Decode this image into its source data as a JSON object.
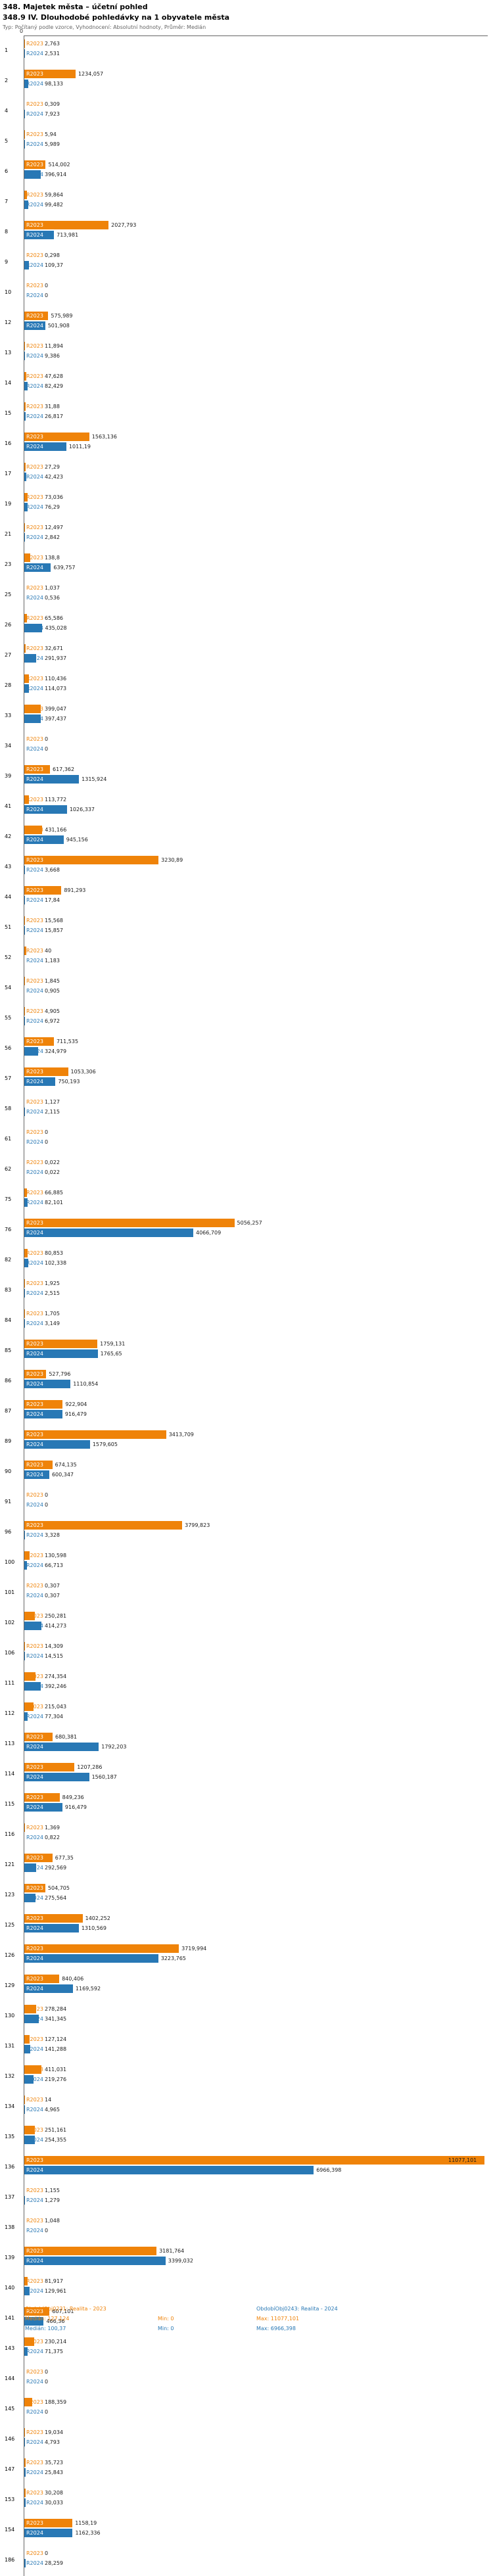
{
  "header": {
    "title": "348. Majetek města – účetní pohled",
    "subtitle": "348.9 IV. Dlouhodobé pohledávky na 1 obyvatele města",
    "meta": "Typ: Počítaný podle vzorce, Vyhodnocení: Absolutní hodnoty, Průměr: Medián"
  },
  "chart_data": {
    "type": "bar",
    "orientation": "horizontal",
    "x_axis": {
      "origin_label": "0",
      "max": 11077.101,
      "grid": false
    },
    "legend_position": "bottom",
    "series": [
      {
        "name": "R2023",
        "legend": "ObdobíObj0231: Realita - 2023",
        "color": "#ef8309",
        "median": "127,124",
        "min": "0",
        "max": "11077,101"
      },
      {
        "name": "R2024",
        "legend": "ObdobíObj0243: Realita - 2024",
        "color": "#2878b5",
        "median": "100,37",
        "min": "0",
        "max": "6966,398"
      }
    ],
    "rows": [
      {
        "num": "1",
        "r2023": "2,763",
        "r2024": "2,531"
      },
      {
        "num": "2",
        "r2023": "1234,057",
        "r2024": "98,133"
      },
      {
        "num": "4",
        "r2023": "0,309",
        "r2024": "7,923"
      },
      {
        "num": "5",
        "r2023": "5,94",
        "r2024": "5,989"
      },
      {
        "num": "6",
        "r2023": "514,002",
        "r2024": "396,914"
      },
      {
        "num": "7",
        "r2023": "59,864",
        "r2024": "99,482"
      },
      {
        "num": "8",
        "r2023": "2027,793",
        "r2024": "713,981"
      },
      {
        "num": "9",
        "r2023": "0,298",
        "r2024": "109,37"
      },
      {
        "num": "10",
        "r2023": "0",
        "r2024": "0"
      },
      {
        "num": "12",
        "r2023": "575,989",
        "r2024": "501,908"
      },
      {
        "num": "13",
        "r2023": "11,894",
        "r2024": "9,386"
      },
      {
        "num": "14",
        "r2023": "47,628",
        "r2024": "82,429"
      },
      {
        "num": "15",
        "r2023": "31,88",
        "r2024": "26,817"
      },
      {
        "num": "16",
        "r2023": "1563,136",
        "r2024": "1011,19"
      },
      {
        "num": "17",
        "r2023": "27,29",
        "r2024": "42,423"
      },
      {
        "num": "19",
        "r2023": "73,036",
        "r2024": "76,29"
      },
      {
        "num": "21",
        "r2023": "12,497",
        "r2024": "2,842"
      },
      {
        "num": "23",
        "r2023": "138,8",
        "r2024": "639,757"
      },
      {
        "num": "25",
        "r2023": "1,037",
        "r2024": "0,536"
      },
      {
        "num": "26",
        "r2023": "65,586",
        "r2024": "435,028"
      },
      {
        "num": "27",
        "r2023": "32,671",
        "r2024": "291,937"
      },
      {
        "num": "28",
        "r2023": "110,436",
        "r2024": "114,073"
      },
      {
        "num": "33",
        "r2023": "399,047",
        "r2024": "397,437"
      },
      {
        "num": "34",
        "r2023": "0",
        "r2024": "0"
      },
      {
        "num": "39",
        "r2023": "617,362",
        "r2024": "1315,924"
      },
      {
        "num": "41",
        "r2023": "113,772",
        "r2024": "1026,337"
      },
      {
        "num": "42",
        "r2023": "431,166",
        "r2024": "945,156"
      },
      {
        "num": "43",
        "r2023": "3230,89",
        "r2024": "3,668"
      },
      {
        "num": "44",
        "r2023": "891,293",
        "r2024": "17,84"
      },
      {
        "num": "51",
        "r2023": "15,568",
        "r2024": "15,857"
      },
      {
        "num": "52",
        "r2023": "40",
        "r2024": "1,183"
      },
      {
        "num": "54",
        "r2023": "1,845",
        "r2024": "0,905"
      },
      {
        "num": "55",
        "r2023": "4,905",
        "r2024": "6,972"
      },
      {
        "num": "56",
        "r2023": "711,535",
        "r2024": "324,979"
      },
      {
        "num": "57",
        "r2023": "1053,306",
        "r2024": "750,193"
      },
      {
        "num": "58",
        "r2023": "1,127",
        "r2024": "2,115"
      },
      {
        "num": "61",
        "r2023": "0",
        "r2024": "0"
      },
      {
        "num": "62",
        "r2023": "0,022",
        "r2024": "0,022"
      },
      {
        "num": "75",
        "r2023": "66,885",
        "r2024": "82,101"
      },
      {
        "num": "76",
        "r2023": "5056,257",
        "r2024": "4066,709"
      },
      {
        "num": "82",
        "r2023": "80,853",
        "r2024": "102,338"
      },
      {
        "num": "83",
        "r2023": "1,925",
        "r2024": "2,515"
      },
      {
        "num": "84",
        "r2023": "1,705",
        "r2024": "3,149"
      },
      {
        "num": "85",
        "r2023": "1759,131",
        "r2024": "1765,65"
      },
      {
        "num": "86",
        "r2023": "527,796",
        "r2024": "1110,854"
      },
      {
        "num": "87",
        "r2023": "922,904",
        "r2024": "916,479"
      },
      {
        "num": "89",
        "r2023": "3413,709",
        "r2024": "1579,605"
      },
      {
        "num": "90",
        "r2023": "674,135",
        "r2024": "600,347"
      },
      {
        "num": "91",
        "r2023": "0",
        "r2024": "0"
      },
      {
        "num": "96",
        "r2023": "3799,823",
        "r2024": "3,328"
      },
      {
        "num": "100",
        "r2023": "130,598",
        "r2024": "66,713"
      },
      {
        "num": "101",
        "r2023": "0,307",
        "r2024": "0,307"
      },
      {
        "num": "102",
        "r2023": "250,281",
        "r2024": "414,273"
      },
      {
        "num": "106",
        "r2023": "14,309",
        "r2024": "14,515"
      },
      {
        "num": "111",
        "r2023": "274,354",
        "r2024": "392,246"
      },
      {
        "num": "112",
        "r2023": "215,043",
        "r2024": "77,304"
      },
      {
        "num": "113",
        "r2023": "680,381",
        "r2024": "1792,203"
      },
      {
        "num": "114",
        "r2023": "1207,286",
        "r2024": "1560,187"
      },
      {
        "num": "115",
        "r2023": "849,236",
        "r2024": "916,479"
      },
      {
        "num": "116",
        "r2023": "1,369",
        "r2024": "0,822"
      },
      {
        "num": "121",
        "r2023": "677,35",
        "r2024": "292,569"
      },
      {
        "num": "123",
        "r2023": "504,705",
        "r2024": "275,564"
      },
      {
        "num": "125",
        "r2023": "1402,252",
        "r2024": "1310,569"
      },
      {
        "num": "126",
        "r2023": "3719,994",
        "r2024": "3223,765"
      },
      {
        "num": "129",
        "r2023": "840,406",
        "r2024": "1169,592"
      },
      {
        "num": "130",
        "r2023": "278,284",
        "r2024": "341,345"
      },
      {
        "num": "131",
        "r2023": "127,124",
        "r2024": "141,288"
      },
      {
        "num": "132",
        "r2023": "411,031",
        "r2024": "219,276"
      },
      {
        "num": "134",
        "r2023": "14",
        "r2024": "4,965"
      },
      {
        "num": "135",
        "r2023": "251,161",
        "r2024": "254,355"
      },
      {
        "num": "136",
        "r2023": "11077,101",
        "r2024": "6966,398"
      },
      {
        "num": "137",
        "r2023": "1,155",
        "r2024": "1,279"
      },
      {
        "num": "138",
        "r2023": "1,048",
        "r2024": "0"
      },
      {
        "num": "139",
        "r2023": "3181,764",
        "r2024": "3399,032"
      },
      {
        "num": "140",
        "r2023": "81,917",
        "r2024": "129,961"
      },
      {
        "num": "141",
        "r2023": "607,101",
        "r2024": "466,36"
      },
      {
        "num": "143",
        "r2023": "230,214",
        "r2024": "71,375"
      },
      {
        "num": "144",
        "r2023": "0",
        "r2024": "0"
      },
      {
        "num": "145",
        "r2023": "188,359",
        "r2024": "0"
      },
      {
        "num": "146",
        "r2023": "19,034",
        "r2024": "4,793"
      },
      {
        "num": "147",
        "r2023": "35,723",
        "r2024": "25,843"
      },
      {
        "num": "153",
        "r2023": "30,208",
        "r2024": "30,033"
      },
      {
        "num": "154",
        "r2023": "1158,19",
        "r2024": "1162,336"
      },
      {
        "num": "186",
        "r2023": "0",
        "r2024": "28,259"
      }
    ]
  },
  "footer": {
    "legend_2023": "ObdobíObj0231: Realita - 2023",
    "legend_2024": "ObdobíObj0243: Realita - 2024",
    "stats_2023": {
      "median": "Medián: 127,124",
      "min": "Min: 0",
      "max": "Max: 11077,101"
    },
    "stats_2024": {
      "median": "Medián: 100,37",
      "min": "Min: 0",
      "max": "Max: 6966,398"
    }
  }
}
